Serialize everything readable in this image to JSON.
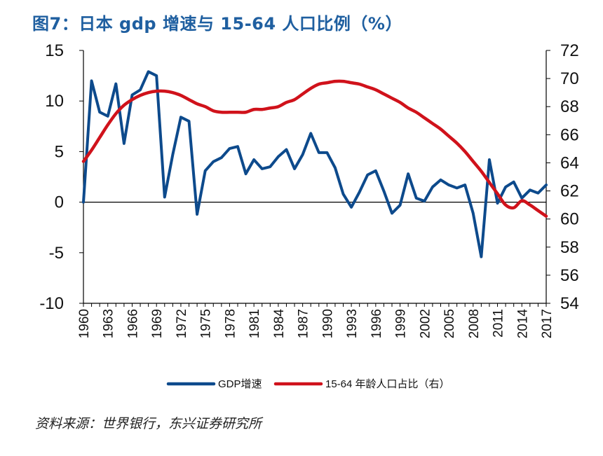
{
  "title": "图7：日本 gdp 增速与 15-64 人口比例（%）",
  "source": "资料来源：世界银行，东兴证券研究所",
  "chart_data": {
    "type": "line",
    "title": "图7：日本 gdp 增速与 15-64 人口比例（%）",
    "x": [
      1960,
      1961,
      1962,
      1963,
      1964,
      1965,
      1966,
      1967,
      1968,
      1969,
      1970,
      1971,
      1972,
      1973,
      1974,
      1975,
      1976,
      1977,
      1978,
      1979,
      1980,
      1981,
      1982,
      1983,
      1984,
      1985,
      1986,
      1987,
      1988,
      1989,
      1990,
      1991,
      1992,
      1993,
      1994,
      1995,
      1996,
      1997,
      1998,
      1999,
      2000,
      2001,
      2002,
      2003,
      2004,
      2005,
      2006,
      2007,
      2008,
      2009,
      2010,
      2011,
      2012,
      2013,
      2014,
      2015,
      2016,
      2017
    ],
    "x_tick_labels": [
      "1960",
      "1963",
      "1966",
      "1969",
      "1972",
      "1975",
      "1978",
      "1981",
      "1984",
      "1987",
      "1990",
      "1993",
      "1996",
      "1999",
      "2002",
      "2005",
      "2008",
      "2011",
      "2014",
      "2017"
    ],
    "y_left": {
      "ylim": [
        -10,
        15
      ],
      "ticks": [
        "15",
        "10",
        "5",
        "0",
        "-5",
        "-10"
      ]
    },
    "y_right": {
      "ylim": [
        54,
        72
      ],
      "ticks": [
        "72",
        "70",
        "68",
        "66",
        "64",
        "62",
        "60",
        "58",
        "56",
        "54"
      ]
    },
    "series": [
      {
        "name": "GDP增速",
        "axis": "left",
        "color": "#0d4a8c",
        "values": [
          0.0,
          12.0,
          8.9,
          8.5,
          11.7,
          5.8,
          10.6,
          11.1,
          12.9,
          12.5,
          0.5,
          4.7,
          8.4,
          8.0,
          -1.2,
          3.1,
          4.0,
          4.4,
          5.3,
          5.5,
          2.8,
          4.2,
          3.3,
          3.5,
          4.5,
          5.2,
          3.3,
          4.7,
          6.8,
          4.9,
          4.9,
          3.4,
          0.8,
          -0.5,
          1.0,
          2.7,
          3.1,
          1.1,
          -1.1,
          -0.3,
          2.8,
          0.4,
          0.1,
          1.5,
          2.2,
          1.7,
          1.4,
          1.7,
          -1.1,
          -5.4,
          4.2,
          -0.1,
          1.5,
          2.0,
          0.4,
          1.2,
          0.9,
          1.7
        ]
      },
      {
        "name": "15-64 年龄人口占比（右）",
        "axis": "right",
        "color": "#d0121b",
        "values": [
          64.1,
          64.9,
          65.8,
          66.7,
          67.5,
          68.1,
          68.5,
          68.8,
          69.0,
          69.1,
          69.1,
          69.0,
          68.8,
          68.5,
          68.2,
          68.0,
          67.7,
          67.6,
          67.6,
          67.6,
          67.6,
          67.8,
          67.8,
          67.9,
          68.0,
          68.3,
          68.5,
          68.9,
          69.3,
          69.6,
          69.7,
          69.8,
          69.8,
          69.7,
          69.6,
          69.4,
          69.2,
          68.9,
          68.6,
          68.3,
          67.9,
          67.6,
          67.2,
          66.8,
          66.4,
          65.9,
          65.4,
          64.8,
          64.1,
          63.4,
          62.6,
          61.8,
          61.0,
          60.8,
          61.3,
          61.0,
          60.6,
          60.2
        ]
      }
    ],
    "legend": {
      "position": "bottom",
      "labels": [
        "GDP增速",
        "15-64 年龄人口占比（右）"
      ]
    }
  }
}
